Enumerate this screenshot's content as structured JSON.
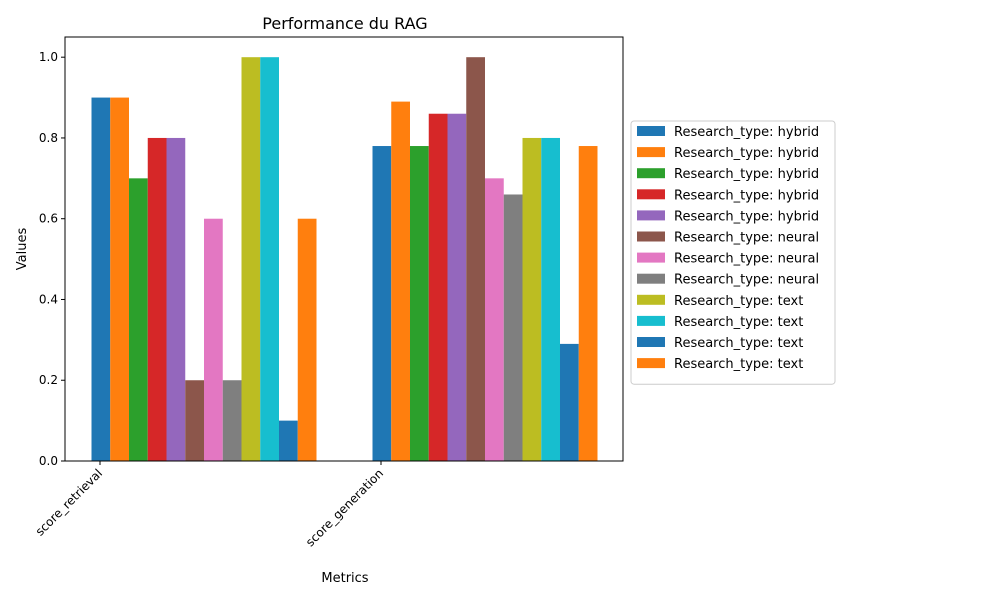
{
  "chart_data": {
    "type": "bar",
    "title": "Performance du RAG",
    "xlabel": "Metrics",
    "ylabel": "Values",
    "categories": [
      "score_retrieval",
      "score_generation"
    ],
    "ylim": [
      0,
      1.05
    ],
    "yticks": [
      "0.0",
      "0.2",
      "0.4",
      "0.6",
      "0.8",
      "1.0"
    ],
    "grid": false,
    "legend_position": "center-right outside",
    "series": [
      {
        "name": "Research_type: hybrid",
        "color": "#1f77b4",
        "values": [
          0.9,
          0.78
        ]
      },
      {
        "name": "Research_type: hybrid",
        "color": "#ff7f0e",
        "values": [
          0.9,
          0.89
        ]
      },
      {
        "name": "Research_type: hybrid",
        "color": "#2ca02c",
        "values": [
          0.7,
          0.78
        ]
      },
      {
        "name": "Research_type: hybrid",
        "color": "#d62728",
        "values": [
          0.8,
          0.86
        ]
      },
      {
        "name": "Research_type: hybrid",
        "color": "#9467bd",
        "values": [
          0.8,
          0.86
        ]
      },
      {
        "name": "Research_type: neural",
        "color": "#8c564b",
        "values": [
          0.2,
          1.0
        ]
      },
      {
        "name": "Research_type: neural",
        "color": "#e377c2",
        "values": [
          0.6,
          0.7
        ]
      },
      {
        "name": "Research_type: neural",
        "color": "#7f7f7f",
        "values": [
          0.2,
          0.66
        ]
      },
      {
        "name": "Research_type: text",
        "color": "#bcbd22",
        "values": [
          1.0,
          0.8
        ]
      },
      {
        "name": "Research_type: text",
        "color": "#17becf",
        "values": [
          1.0,
          0.8
        ]
      },
      {
        "name": "Research_type: text",
        "color": "#1f77b4",
        "values": [
          0.1,
          0.29
        ]
      },
      {
        "name": "Research_type: text",
        "color": "#ff7f0e",
        "values": [
          0.6,
          0.78
        ]
      }
    ]
  }
}
